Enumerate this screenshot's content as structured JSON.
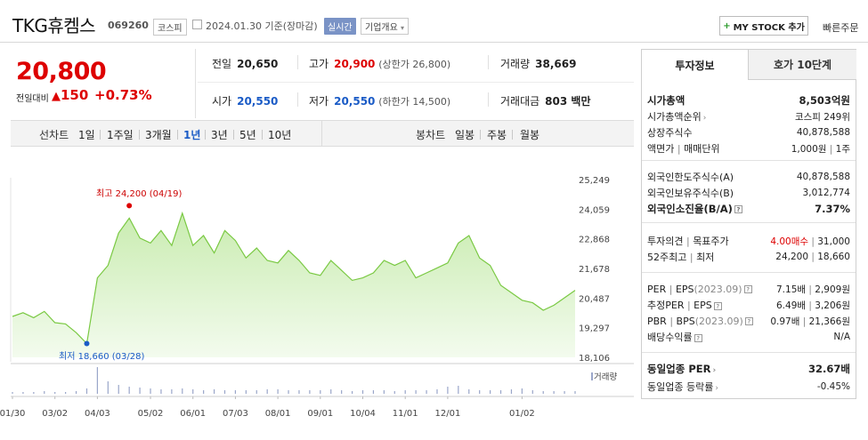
{
  "header": {
    "title": "TKG휴켐스",
    "code": "069260",
    "market": "코스피",
    "date": "2024.01.30",
    "date_suffix": "기준(장마감)",
    "realtime": "실시간",
    "overview": "기업개요",
    "mystock": "MY STOCK 추가",
    "quick_order": "빠른주문"
  },
  "price": {
    "current": "20,800",
    "change_label": "전일대비",
    "change_amount": "150",
    "change_pct": "+0.73%"
  },
  "quote": {
    "prev_close_label": "전일",
    "prev_close": "20,650",
    "high_label": "고가",
    "high": "20,900",
    "upper_limit_text": "(상한가 26,800)",
    "volume_label": "거래량",
    "volume": "38,669",
    "open_label": "시가",
    "open": "20,550",
    "low_label": "저가",
    "low": "20,550",
    "lower_limit_text": "(하한가 14,500)",
    "value_label": "거래대금",
    "value": "803 백만"
  },
  "period_bar": {
    "line_chart_label": "선차트",
    "line_periods": [
      "1일",
      "1주일",
      "3개월",
      "1년",
      "3년",
      "5년",
      "10년"
    ],
    "selected_period": "1년",
    "candle_label": "봉차트",
    "candle_periods": [
      "일봉",
      "주봉",
      "월봉"
    ]
  },
  "chart_labels": {
    "max_text": "최고 24,200 (04/19)",
    "min_text": "최저 18,660 (03/28)",
    "volume_text": "거래량"
  },
  "chart_data": {
    "type": "area",
    "y_ticks": [
      "25,249",
      "24,059",
      "22,868",
      "21,678",
      "20,487",
      "19,297",
      "18,106"
    ],
    "ylim": [
      18106,
      25249
    ],
    "x_ticks": [
      "01/30",
      "03/02",
      "04/03",
      "05/02",
      "06/01",
      "07/03",
      "08/01",
      "09/01",
      "10/04",
      "11/01",
      "12/01",
      "01/02"
    ],
    "x": [
      "01/30",
      "02/07",
      "02/15",
      "02/23",
      "03/02",
      "03/10",
      "03/18",
      "03/28",
      "04/03",
      "04/07",
      "04/11",
      "04/19",
      "04/25",
      "05/02",
      "05/10",
      "05/18",
      "05/26",
      "06/01",
      "06/09",
      "06/17",
      "06/25",
      "07/03",
      "07/11",
      "07/19",
      "07/27",
      "08/01",
      "08/09",
      "08/17",
      "08/25",
      "09/01",
      "09/09",
      "09/17",
      "09/25",
      "10/04",
      "10/12",
      "10/20",
      "10/28",
      "11/01",
      "11/09",
      "11/17",
      "11/25",
      "12/01",
      "12/05",
      "12/09",
      "12/13",
      "12/17",
      "12/21",
      "12/27",
      "01/02",
      "01/08",
      "01/14",
      "01/20",
      "01/25",
      "01/30"
    ],
    "values": [
      19750,
      19900,
      19700,
      19950,
      19500,
      19450,
      19100,
      18660,
      21300,
      21800,
      23100,
      23700,
      22900,
      22700,
      23200,
      22600,
      23900,
      22600,
      23000,
      22300,
      23200,
      22800,
      22100,
      22500,
      22000,
      21900,
      22400,
      22000,
      21500,
      21400,
      22000,
      21600,
      21200,
      21300,
      21500,
      22000,
      21800,
      22000,
      21300,
      21500,
      21700,
      21900,
      22700,
      23000,
      22100,
      21800,
      21000,
      20700,
      20400,
      20300,
      20000,
      20200,
      20500,
      20800
    ],
    "volume": [
      2,
      2,
      2,
      3,
      2,
      2,
      3,
      6,
      30,
      14,
      10,
      8,
      7,
      6,
      5,
      5,
      6,
      5,
      4,
      5,
      4,
      4,
      4,
      4,
      5,
      5,
      4,
      4,
      4,
      4,
      5,
      4,
      3,
      4,
      4,
      4,
      3,
      4,
      4,
      4,
      5,
      8,
      9,
      5,
      4,
      4,
      4,
      5,
      6,
      4,
      3,
      3,
      3,
      3
    ],
    "max": {
      "label": "24,200",
      "date": "04/19"
    },
    "min": {
      "label": "18,660",
      "date": "03/28"
    },
    "series": [
      {
        "name": "",
        "color": "#7ac943"
      }
    ],
    "grid": false
  },
  "invest": {
    "tab_info": "투자정보",
    "tab_hoga": "호가 10단계",
    "rows1": [
      {
        "l": "시가총액",
        "r": "8,503억원"
      },
      {
        "l": "시가총액순위",
        "r": "코스피 249위"
      },
      {
        "l": "상장주식수",
        "r": "40,878,588"
      },
      {
        "l": "액면가",
        "l2": "매매단위",
        "r": "1,000원",
        "r2": "1주"
      }
    ],
    "rows2": [
      {
        "l": "외국인한도주식수(A)",
        "r": "40,878,588"
      },
      {
        "l": "외국인보유주식수(B)",
        "r": "3,012,774"
      },
      {
        "l": "외국인소진율(B/A)",
        "r": "7.37%"
      }
    ],
    "rows3": [
      {
        "l": "투자의견",
        "l2": "목표주가",
        "r": "4.00매수",
        "r2": "31,000"
      },
      {
        "l": "52주최고",
        "l2": "최저",
        "r": "24,200",
        "r2": "18,660"
      }
    ],
    "rows4": [
      {
        "l": "PER",
        "l2": "EPS",
        "l3": "(2023.09)",
        "r": "7.15배",
        "r2": "2,909원"
      },
      {
        "l": "추정PER",
        "l2": "EPS",
        "r": "6.49배",
        "r2": "3,206원"
      },
      {
        "l": "PBR",
        "l2": "BPS",
        "l3": "(2023.09)",
        "r": "0.97배",
        "r2": "21,366원"
      },
      {
        "l": "배당수익률",
        "r": "N/A"
      }
    ],
    "rows5": [
      {
        "l": "동일업종 PER",
        "r": "32.67배"
      },
      {
        "l": "동일업종 등락률",
        "r": "-0.45%"
      }
    ]
  }
}
